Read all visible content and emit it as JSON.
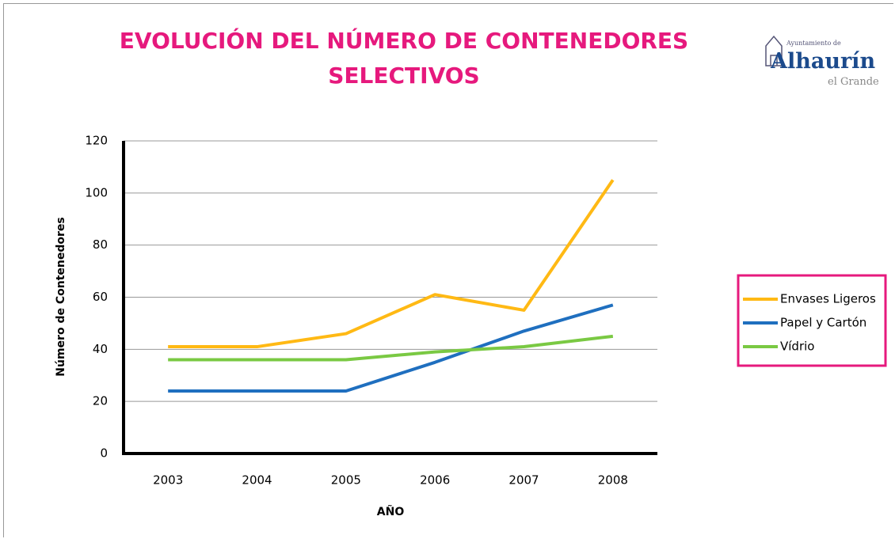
{
  "chart_data": {
    "type": "line",
    "title": "EVOLUCIÓN DEL NÚMERO DE CONTENEDORES SELECTIVOS",
    "x_label": "AÑO",
    "y_label": "Número de Contenedores",
    "categories": [
      "2003",
      "2004",
      "2005",
      "2006",
      "2007",
      "2008"
    ],
    "series": [
      {
        "name": "Envases Ligeros",
        "color": "#ffb914",
        "values": [
          41,
          41,
          46,
          61,
          55,
          105
        ]
      },
      {
        "name": "Papel y Cartón",
        "color": "#1f6fbf",
        "values": [
          24,
          24,
          24,
          35,
          47,
          57
        ]
      },
      {
        "name": "Vídrio",
        "color": "#7ac943",
        "values": [
          36,
          36,
          36,
          39,
          41,
          45
        ]
      }
    ],
    "ylim": [
      0,
      120
    ],
    "yticks": [
      0,
      20,
      40,
      60,
      80,
      100,
      120
    ],
    "grid": true,
    "legend": "right"
  },
  "logo": {
    "top": "Ayuntamiento de",
    "name": "Alhaurín",
    "bottom": "el Grande"
  }
}
